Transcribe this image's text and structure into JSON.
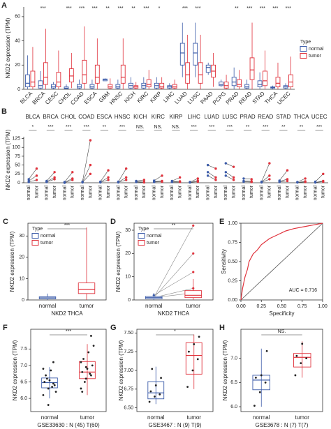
{
  "chart_data": [
    {
      "panel": "A",
      "type": "box",
      "dodge": true,
      "ylabel": "NKD2 expression (TPM)",
      "categories": [
        "BLCA",
        "BRCA",
        "CESC",
        "CHOL",
        "COAD",
        "ESCA",
        "GBM",
        "HNSC",
        "KICH",
        "KIRC",
        "KIRP",
        "LIHC",
        "LUAD",
        "LUSC",
        "PAAD",
        "PCPG",
        "PRAD",
        "READ",
        "STAD",
        "THCA",
        "UCEC"
      ],
      "significance": [
        null,
        "***",
        null,
        "***",
        "***",
        "***",
        "**",
        "***",
        "**",
        "***",
        "*",
        null,
        "***",
        "***",
        null,
        null,
        "**",
        "***",
        "***",
        "***",
        "***"
      ],
      "ylim": [
        0,
        68
      ],
      "yticks": [
        0,
        20,
        40,
        60
      ],
      "legend_title": "Type",
      "series": [
        {
          "name": "normal",
          "color": "#3b5ba9",
          "q1": [
            2,
            1,
            1,
            0.5,
            1,
            1,
            7,
            1,
            1,
            1,
            1,
            1,
            20,
            20,
            14,
            3,
            3,
            1,
            2,
            1,
            1
          ],
          "median": [
            5,
            3,
            2,
            1,
            2,
            2,
            8,
            2,
            3,
            3,
            3,
            2,
            30,
            30,
            18,
            4,
            6,
            2,
            4,
            1.5,
            2
          ],
          "q3": [
            12,
            7,
            4,
            2,
            4,
            4,
            8.5,
            4,
            5,
            5,
            5,
            3,
            38,
            38,
            20,
            6,
            10,
            4,
            7,
            2,
            3
          ],
          "lo": [
            0,
            0,
            0,
            0,
            0,
            0,
            7,
            0,
            0,
            0,
            0,
            0,
            10,
            10,
            12,
            2,
            0,
            0,
            0,
            0,
            0
          ],
          "hi": [
            28,
            15,
            6,
            4,
            8,
            8,
            9,
            8,
            10,
            10,
            10,
            5,
            55,
            55,
            22,
            8,
            18,
            8,
            14,
            3,
            5
          ]
        },
        {
          "name": "tumor",
          "color": "#e0323c",
          "q1": [
            2,
            4,
            2,
            6,
            5,
            5,
            1,
            5,
            1,
            2,
            1,
            1,
            5,
            5,
            10,
            1,
            2,
            8,
            3,
            2,
            2
          ],
          "median": [
            6,
            10,
            6,
            11,
            12,
            10,
            2,
            10,
            2,
            4,
            2,
            2,
            12,
            12,
            15,
            3,
            4,
            16,
            7,
            5,
            6
          ],
          "q3": [
            15,
            22,
            14,
            17,
            24,
            20,
            4,
            20,
            3,
            8,
            5,
            4,
            22,
            22,
            20,
            6,
            8,
            26,
            15,
            10,
            12
          ],
          "lo": [
            0,
            0,
            0,
            1,
            0,
            0,
            0,
            0,
            0,
            0,
            0,
            0,
            0,
            0,
            2,
            0,
            0,
            0,
            0,
            0,
            0
          ],
          "hi": [
            35,
            50,
            32,
            30,
            52,
            42,
            9,
            42,
            6,
            16,
            10,
            8,
            45,
            45,
            30,
            12,
            16,
            55,
            32,
            22,
            27
          ]
        }
      ]
    },
    {
      "panel": "B",
      "type": "paired",
      "ylabel": "NKD2 expression (TPM)",
      "categories": [
        "BLCA",
        "BRCA",
        "CHOL",
        "COAD",
        "ESCA",
        "HNSC",
        "KICH",
        "KIRC",
        "KIRP",
        "LIHC",
        "LUAD",
        "LUSC",
        "PRAD",
        "READ",
        "STAD",
        "THCA",
        "UCEC"
      ],
      "significance": [
        "*",
        "***",
        "***",
        "***",
        "**",
        "***",
        "NS.",
        "NS.",
        "NS.",
        "***",
        "***",
        "***",
        "**",
        "***",
        "**",
        "**",
        "***"
      ],
      "groups": [
        "normal",
        "tumor"
      ],
      "colors": [
        "#3b5ba9",
        "#e0323c"
      ],
      "ylim": [
        0,
        130
      ],
      "yticks": [
        0,
        25,
        50,
        75,
        100,
        125
      ],
      "pairs": [
        [
          [
            5,
            20
          ],
          [
            10,
            40
          ],
          [
            2,
            8
          ]
        ],
        [
          [
            3,
            15
          ],
          [
            5,
            30
          ],
          [
            2,
            10
          ]
        ],
        [
          [
            1,
            12
          ],
          [
            2,
            30
          ],
          [
            0,
            8
          ]
        ],
        [
          [
            2,
            50
          ],
          [
            3,
            120
          ],
          [
            1,
            25
          ]
        ],
        [
          [
            2,
            15
          ],
          [
            3,
            35
          ],
          [
            1,
            8
          ]
        ],
        [
          [
            2,
            15
          ],
          [
            3,
            40
          ],
          [
            1,
            8
          ]
        ],
        [
          [
            3,
            2
          ],
          [
            5,
            8
          ],
          [
            2,
            1
          ]
        ],
        [
          [
            3,
            5
          ],
          [
            6,
            20
          ],
          [
            2,
            3
          ]
        ],
        [
          [
            3,
            4
          ],
          [
            5,
            15
          ],
          [
            2,
            2
          ]
        ],
        [
          [
            1,
            3
          ],
          [
            2,
            12
          ],
          [
            1,
            6
          ]
        ],
        [
          [
            30,
            15
          ],
          [
            50,
            40
          ],
          [
            20,
            8
          ]
        ],
        [
          [
            30,
            15
          ],
          [
            55,
            45
          ],
          [
            20,
            8
          ]
        ],
        [
          [
            5,
            4
          ],
          [
            12,
            10
          ],
          [
            3,
            2
          ]
        ],
        [
          [
            2,
            20
          ],
          [
            3,
            55
          ],
          [
            1,
            10
          ]
        ],
        [
          [
            4,
            10
          ],
          [
            6,
            35
          ],
          [
            2,
            5
          ]
        ],
        [
          [
            1,
            4
          ],
          [
            2,
            12
          ],
          [
            1,
            2
          ]
        ],
        [
          [
            1,
            5
          ],
          [
            3,
            25
          ],
          [
            1,
            3
          ]
        ]
      ]
    },
    {
      "panel": "C",
      "type": "box",
      "ylabel": "NKD2 expression (TPM)",
      "xlabel": "NKD2 THCA",
      "categories": [
        "normal",
        "tumor"
      ],
      "annotation": "***",
      "legend_title": "Type",
      "ylim": [
        0,
        36
      ],
      "yticks": [
        0,
        10,
        20,
        30
      ],
      "series": [
        {
          "name": "normal",
          "color": "#3b5ba9",
          "q1": [
            0.5,
            null
          ],
          "median": [
            1,
            null
          ],
          "q3": [
            1.5,
            null
          ],
          "lo": [
            0,
            null
          ],
          "hi": [
            3,
            null
          ]
        },
        {
          "name": "tumor",
          "color": "#e0323c",
          "q1": [
            null,
            3
          ],
          "median": [
            null,
            5
          ],
          "q3": [
            null,
            8
          ],
          "lo": [
            null,
            0
          ],
          "hi": [
            null,
            34
          ]
        }
      ]
    },
    {
      "panel": "D",
      "type": "box",
      "ylabel": "NKD2 expression (TPM)",
      "xlabel": "NKD2 THCA",
      "categories": [
        "normal",
        "tumor"
      ],
      "annotation": "**",
      "legend_title": "Type",
      "ylim": [
        0,
        33
      ],
      "yticks": [
        0,
        10,
        20,
        30
      ],
      "pairs": [
        [
          1,
          32
        ],
        [
          1,
          20
        ],
        [
          2,
          12
        ],
        [
          1,
          5
        ],
        [
          1,
          3
        ]
      ],
      "series": [
        {
          "name": "normal",
          "color": "#3b5ba9",
          "q1": [
            0.5,
            null
          ],
          "median": [
            1,
            null
          ],
          "q3": [
            1.5,
            null
          ],
          "lo": [
            0,
            null
          ],
          "hi": [
            3,
            null
          ]
        },
        {
          "name": "tumor",
          "color": "#e0323c",
          "q1": [
            null,
            1
          ],
          "median": [
            null,
            2
          ],
          "q3": [
            null,
            4
          ],
          "lo": [
            null,
            0
          ],
          "hi": [
            null,
            9
          ]
        }
      ]
    },
    {
      "panel": "E",
      "type": "roc",
      "ylabel": "Sensitivity",
      "xlabel": "Specificity",
      "annotation": "AUC = 0.716",
      "color": "#e0323c",
      "x": [
        0,
        0.02,
        0.05,
        0.08,
        0.1,
        0.15,
        0.2,
        0.25,
        0.3,
        0.35,
        0.45,
        0.55,
        0.65,
        0.8,
        0.9,
        1
      ],
      "y": [
        0,
        0.15,
        0.3,
        0.4,
        0.5,
        0.6,
        0.65,
        0.72,
        0.76,
        0.8,
        0.85,
        0.9,
        0.93,
        0.96,
        0.98,
        1
      ],
      "xlim": [
        0,
        1
      ],
      "ylim": [
        0,
        1
      ],
      "xticks": [
        {
          "value": 0,
          "label": "0.00"
        },
        {
          "value": 0.25,
          "label": "0.25"
        },
        {
          "value": 0.5,
          "label": "0.50"
        },
        {
          "value": 0.75,
          "label": "0.75"
        },
        {
          "value": 1,
          "label": "1.00"
        }
      ],
      "yticks": [
        {
          "value": 0,
          "label": "0.00"
        },
        {
          "value": 0.25,
          "label": "0.25"
        },
        {
          "value": 0.5,
          "label": "0.50"
        },
        {
          "value": 0.75,
          "label": "0.75"
        },
        {
          "value": 1,
          "label": "1.00"
        }
      ]
    },
    {
      "panel": "F",
      "type": "box",
      "ylabel": "NKD2 expression (TPM)",
      "xlabel": "GSE33630 : N (45) T(60)",
      "categories": [
        "normal",
        "tumor"
      ],
      "annotation": "***",
      "ylim": [
        5.6,
        8.1
      ],
      "yticks": [
        {
          "value": 6,
          "label": "6.0"
        },
        6.5,
        {
          "value": 7,
          "label": "7.0"
        },
        7.5
      ],
      "series": [
        {
          "color": "#3b5ba9",
          "q1": [
            6.32,
            null
          ],
          "median": [
            6.48,
            null
          ],
          "q3": [
            6.62,
            null
          ],
          "lo": [
            6.0,
            null
          ],
          "hi": [
            6.95,
            null
          ],
          "points": [
            [
              6.1,
              6.3,
              6.45,
              6.5,
              6.55,
              6.4,
              6.7,
              6.85,
              6.2,
              6.6,
              6.35,
              6.9,
              5.8,
              7.1
            ],
            null
          ]
        },
        {
          "color": "#e0323c",
          "q1": [
            null,
            6.6
          ],
          "median": [
            null,
            6.8
          ],
          "q3": [
            null,
            7.12
          ],
          "lo": [
            null,
            6.1
          ],
          "hi": [
            null,
            7.65
          ],
          "points": [
            null,
            [
              6.3,
              6.6,
              6.7,
              6.8,
              6.9,
              7.0,
              7.2,
              7.4,
              7.6,
              6.5,
              6.75,
              7.1,
              6.95,
              7.9,
              6.2
            ]
          ]
        }
      ]
    },
    {
      "panel": "G",
      "type": "box",
      "ylabel": "NKD2 expression (TPM)",
      "xlabel": "GSE3467 : N (9) T(9)",
      "categories": [
        "normal",
        "tumor"
      ],
      "annotation": "*",
      "ylim": [
        6.45,
        7.55
      ],
      "yticks": [
        {
          "value": 6.5,
          "label": "6.50"
        },
        {
          "value": 6.75,
          "label": "6.75"
        },
        {
          "value": 7,
          "label": "7.00"
        },
        {
          "value": 7.25,
          "label": "7.25"
        },
        {
          "value": 7.5,
          "label": "7.50"
        }
      ],
      "series": [
        {
          "color": "#3b5ba9",
          "q1": [
            6.62,
            null
          ],
          "median": [
            6.7,
            null
          ],
          "q3": [
            6.85,
            null
          ],
          "lo": [
            6.55,
            null
          ],
          "hi": [
            7.05,
            null
          ],
          "points": [
            [
              6.58,
              6.65,
              6.68,
              6.72,
              6.8,
              6.9,
              7.02
            ],
            null
          ]
        },
        {
          "color": "#e0323c",
          "q1": [
            null,
            6.95
          ],
          "median": [
            null,
            7.2
          ],
          "q3": [
            null,
            7.37
          ],
          "lo": [
            null,
            6.75
          ],
          "hi": [
            null,
            7.48
          ],
          "points": [
            null,
            [
              6.78,
              7.0,
              7.15,
              7.25,
              7.35,
              7.45
            ]
          ]
        }
      ]
    },
    {
      "panel": "H",
      "type": "box",
      "ylabel": "NKD2 expression (TPM)",
      "xlabel": "GSE3678 : N (7) T(7)",
      "categories": [
        "normal",
        "tumor"
      ],
      "annotation": "NS.",
      "ylim": [
        5.9,
        7.6
      ],
      "yticks": [
        {
          "value": 6,
          "label": "6.0"
        },
        6.5,
        {
          "value": 7,
          "label": "7.0"
        }
      ],
      "series": [
        {
          "color": "#3b5ba9",
          "q1": [
            6.35,
            null
          ],
          "median": [
            6.55,
            null
          ],
          "q3": [
            6.65,
            null
          ],
          "lo": [
            6.0,
            null
          ],
          "hi": [
            7.2,
            null
          ],
          "points": [
            [
              6.02,
              6.3,
              6.5,
              6.6,
              6.65,
              7.15
            ],
            null
          ]
        },
        {
          "color": "#e0323c",
          "q1": [
            null,
            6.82
          ],
          "median": [
            null,
            7.02
          ],
          "q3": [
            null,
            7.1
          ],
          "lo": [
            null,
            6.6
          ],
          "hi": [
            null,
            7.35
          ],
          "points": [
            null,
            [
              6.65,
              6.9,
              7.0,
              7.05,
              7.3
            ]
          ]
        }
      ]
    }
  ]
}
